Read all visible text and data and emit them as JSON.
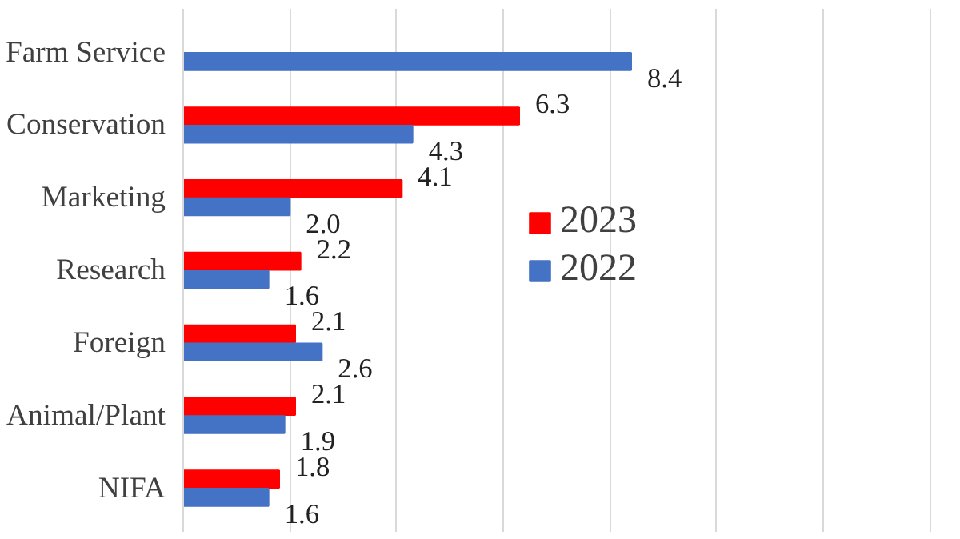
{
  "chart_data": {
    "type": "bar",
    "orientation": "horizontal",
    "categories": [
      "Farm Service",
      "Conservation",
      "Marketing",
      "Research",
      "Foreign",
      "Animal/Plant",
      "NIFA"
    ],
    "series": [
      {
        "name": "2023",
        "color": "#ff0000",
        "values": [
          null,
          6.3,
          4.1,
          2.2,
          2.1,
          2.1,
          1.8
        ],
        "value_labels": [
          null,
          "6.3",
          "4.1",
          "2.2",
          "2.1",
          "2.1",
          "1.8"
        ]
      },
      {
        "name": "2022",
        "color": "#4472c4",
        "values": [
          8.4,
          4.3,
          2.0,
          1.6,
          2.6,
          1.9,
          1.6
        ],
        "value_labels": [
          "8.4",
          "4.3",
          "2.0",
          "1.6",
          "2.6",
          "1.9",
          "1.6"
        ]
      }
    ],
    "grid": "x",
    "legend": "right"
  }
}
